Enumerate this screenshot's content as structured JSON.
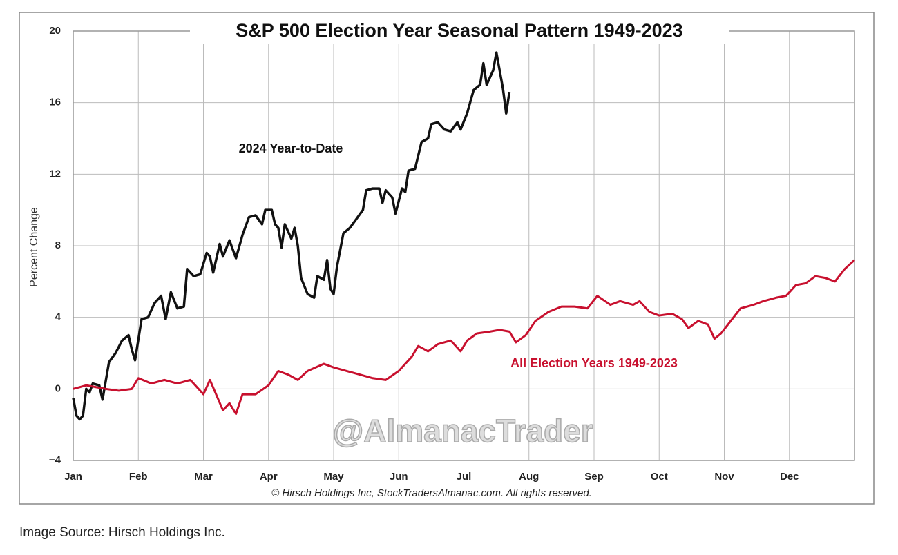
{
  "chart_data": {
    "type": "line",
    "title": "S&P 500 Election Year Seasonal Pattern 1949-2023",
    "ylabel": "Percent Change",
    "watermark": "@AlmanacTrader",
    "credit": "© Hirsch Holdings Inc, StockTradersAlmanac.com. All rights reserved.",
    "xlim": [
      0,
      12
    ],
    "xticks": [
      {
        "value": 0,
        "label": "Jan"
      },
      {
        "value": 1,
        "label": "Feb"
      },
      {
        "value": 2,
        "label": "Mar"
      },
      {
        "value": 3,
        "label": "Apr"
      },
      {
        "value": 4,
        "label": "May"
      },
      {
        "value": 5,
        "label": "Jun"
      },
      {
        "value": 6,
        "label": "Jul"
      },
      {
        "value": 7,
        "label": "Aug"
      },
      {
        "value": 8,
        "label": "Sep"
      },
      {
        "value": 9,
        "label": "Oct"
      },
      {
        "value": 10,
        "label": "Nov"
      },
      {
        "value": 11,
        "label": "Dec"
      }
    ],
    "ylim": [
      -4,
      20
    ],
    "yticks": [
      {
        "value": -4,
        "label": "−4"
      },
      0,
      4,
      8,
      12,
      16,
      20
    ],
    "grid": true,
    "series": [
      {
        "name": "2024 Year-to-Date",
        "color": "#111111",
        "x": [
          0,
          0.05,
          0.1,
          0.15,
          0.2,
          0.25,
          0.3,
          0.4,
          0.45,
          0.55,
          0.65,
          0.75,
          0.85,
          0.9,
          0.95,
          1.05,
          1.15,
          1.25,
          1.35,
          1.42,
          1.5,
          1.6,
          1.7,
          1.75,
          1.85,
          1.95,
          2.05,
          2.1,
          2.15,
          2.25,
          2.3,
          2.4,
          2.5,
          2.6,
          2.7,
          2.8,
          2.9,
          2.95,
          3.05,
          3.1,
          3.15,
          3.2,
          3.25,
          3.35,
          3.4,
          3.45,
          3.5,
          3.6,
          3.7,
          3.75,
          3.85,
          3.9,
          3.95,
          4.0,
          4.05,
          4.15,
          4.25,
          4.35,
          4.45,
          4.5,
          4.6,
          4.7,
          4.75,
          4.8,
          4.9,
          4.95,
          5.05,
          5.1,
          5.15,
          5.25,
          5.35,
          5.45,
          5.5,
          5.6,
          5.7,
          5.8,
          5.9,
          5.95,
          6.05,
          6.15,
          6.25,
          6.3,
          6.35,
          6.45,
          6.5,
          6.6,
          6.65,
          6.7
        ],
        "values": [
          -0.5,
          -1.5,
          -1.7,
          -1.5,
          0,
          -0.2,
          0.3,
          0.2,
          -0.6,
          1.5,
          2.0,
          2.7,
          3.0,
          2.2,
          1.6,
          3.9,
          4.0,
          4.8,
          5.2,
          3.9,
          5.4,
          4.5,
          4.6,
          6.7,
          6.3,
          6.4,
          7.6,
          7.4,
          6.5,
          8.1,
          7.4,
          8.3,
          7.3,
          8.6,
          9.6,
          9.7,
          9.2,
          10.0,
          10.0,
          9.2,
          9.0,
          7.9,
          9.2,
          8.4,
          9.0,
          8.0,
          6.2,
          5.3,
          5.1,
          6.3,
          6.1,
          7.2,
          5.6,
          5.3,
          6.8,
          8.7,
          9.0,
          9.5,
          10.0,
          11.1,
          11.2,
          11.2,
          10.4,
          11.1,
          10.7,
          9.8,
          11.2,
          11.0,
          12.2,
          12.3,
          13.8,
          14.0,
          14.8,
          14.9,
          14.5,
          14.4,
          14.9,
          14.5,
          15.4,
          16.7,
          17.0,
          18.2,
          17.0,
          17.8,
          18.8,
          16.8,
          15.4,
          16.6
        ]
      },
      {
        "name": "All Election Years 1949-2023",
        "color": "#c8102e",
        "x": [
          0,
          0.2,
          0.35,
          0.5,
          0.7,
          0.9,
          1.0,
          1.2,
          1.4,
          1.6,
          1.8,
          2.0,
          2.1,
          2.3,
          2.4,
          2.5,
          2.6,
          2.8,
          3.0,
          3.15,
          3.3,
          3.45,
          3.6,
          3.85,
          4.0,
          4.2,
          4.4,
          4.6,
          4.8,
          5.0,
          5.2,
          5.3,
          5.45,
          5.6,
          5.8,
          5.95,
          6.05,
          6.2,
          6.4,
          6.55,
          6.7,
          6.8,
          6.95,
          7.1,
          7.3,
          7.5,
          7.7,
          7.9,
          8.05,
          8.25,
          8.4,
          8.6,
          8.7,
          8.85,
          9.0,
          9.2,
          9.35,
          9.45,
          9.6,
          9.75,
          9.85,
          9.95,
          10.1,
          10.25,
          10.45,
          10.6,
          10.8,
          10.95,
          11.1,
          11.25,
          11.4,
          11.55,
          11.7,
          11.85,
          12.0
        ],
        "values": [
          0,
          0.2,
          0.1,
          0,
          -0.1,
          0,
          0.6,
          0.3,
          0.5,
          0.3,
          0.5,
          -0.3,
          0.5,
          -1.2,
          -0.8,
          -1.4,
          -0.3,
          -0.3,
          0.2,
          1.0,
          0.8,
          0.5,
          1.0,
          1.4,
          1.2,
          1.0,
          0.8,
          0.6,
          0.5,
          1.0,
          1.8,
          2.4,
          2.1,
          2.5,
          2.7,
          2.1,
          2.7,
          3.1,
          3.2,
          3.3,
          3.2,
          2.6,
          3.0,
          3.8,
          4.3,
          4.6,
          4.6,
          4.5,
          5.2,
          4.7,
          4.9,
          4.7,
          4.9,
          4.3,
          4.1,
          4.2,
          3.9,
          3.4,
          3.8,
          3.6,
          2.8,
          3.1,
          3.8,
          4.5,
          4.7,
          4.9,
          5.1,
          5.2,
          5.8,
          5.9,
          6.3,
          6.2,
          6.0,
          6.7,
          7.2
        ]
      }
    ]
  },
  "caption": "Image Source: Hirsch Holdings Inc."
}
